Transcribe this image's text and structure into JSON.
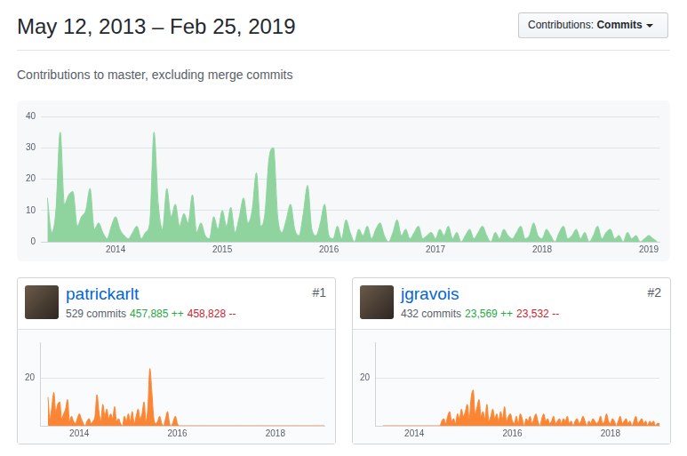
{
  "header": {
    "title": "May 12, 2013 – Feb 25, 2019",
    "button": {
      "label": "Contributions:",
      "value": "Commits"
    },
    "subtitle": "Contributions to master, excluding merge commits"
  },
  "contributors": [
    {
      "rank": "#1",
      "name": "patrickarlt",
      "commits": "529 commits",
      "additions": "457,885 ++",
      "deletions": "458,828 --"
    },
    {
      "rank": "#2",
      "name": "jgravois",
      "commits": "432 commits",
      "additions": "23,569 ++",
      "deletions": "23,532 --"
    }
  ],
  "chart_data": [
    {
      "type": "area",
      "color": "#8fd49f",
      "grid": "y",
      "xlim": [
        2013.3,
        2019.1
      ],
      "xticks": [
        2014,
        2015,
        2016,
        2017,
        2018,
        2019
      ],
      "ylim": [
        0,
        40
      ],
      "yticks": [
        0,
        10,
        20,
        30,
        40
      ],
      "x": [
        2013.36,
        2013.4,
        2013.44,
        2013.48,
        2013.52,
        2013.56,
        2013.6,
        2013.64,
        2013.68,
        2013.72,
        2013.76,
        2013.8,
        2013.84,
        2013.88,
        2013.92,
        2013.96,
        2014,
        2014.04,
        2014.08,
        2014.12,
        2014.16,
        2014.2,
        2014.24,
        2014.28,
        2014.32,
        2014.36,
        2014.4,
        2014.44,
        2014.48,
        2014.52,
        2014.56,
        2014.6,
        2014.64,
        2014.68,
        2014.72,
        2014.76,
        2014.8,
        2014.84,
        2014.88,
        2014.92,
        2014.96,
        2015,
        2015.04,
        2015.08,
        2015.12,
        2015.16,
        2015.2,
        2015.24,
        2015.28,
        2015.32,
        2015.36,
        2015.4,
        2015.44,
        2015.48,
        2015.52,
        2015.56,
        2015.6,
        2015.64,
        2015.68,
        2015.72,
        2015.76,
        2015.8,
        2015.84,
        2015.88,
        2015.92,
        2015.96,
        2016,
        2016.04,
        2016.08,
        2016.12,
        2016.16,
        2016.2,
        2016.24,
        2016.28,
        2016.32,
        2016.36,
        2016.4,
        2016.44,
        2016.48,
        2016.52,
        2016.56,
        2016.6,
        2016.64,
        2016.68,
        2016.72,
        2016.76,
        2016.8,
        2016.84,
        2016.88,
        2016.92,
        2016.96,
        2017,
        2017.04,
        2017.08,
        2017.12,
        2017.16,
        2017.2,
        2017.24,
        2017.28,
        2017.32,
        2017.36,
        2017.4,
        2017.44,
        2017.48,
        2017.52,
        2017.56,
        2017.6,
        2017.64,
        2017.68,
        2017.72,
        2017.76,
        2017.8,
        2017.84,
        2017.88,
        2017.92,
        2017.96,
        2018,
        2018.04,
        2018.08,
        2018.12,
        2018.16,
        2018.2,
        2018.24,
        2018.28,
        2018.32,
        2018.36,
        2018.4,
        2018.44,
        2018.48,
        2018.52,
        2018.56,
        2018.6,
        2018.64,
        2018.68,
        2018.72,
        2018.76,
        2018.8,
        2018.84,
        2018.88,
        2018.92,
        2018.96,
        2019,
        2019.04,
        2019.08
      ],
      "values": [
        14,
        3,
        10,
        35,
        12,
        15,
        16,
        5,
        8,
        10,
        17,
        4,
        6,
        3,
        1,
        5,
        8,
        4,
        2,
        1,
        3,
        5,
        1,
        3,
        6,
        35,
        12,
        4,
        17,
        8,
        12,
        5,
        9,
        6,
        15,
        3,
        6,
        2,
        1,
        8,
        4,
        10,
        5,
        11,
        3,
        8,
        14,
        6,
        10,
        22,
        5,
        9,
        27,
        30,
        8,
        3,
        7,
        12,
        4,
        2,
        9,
        18,
        4,
        2,
        6,
        12,
        2,
        1,
        5,
        1,
        7,
        3,
        0,
        4,
        2,
        5,
        1,
        4,
        6,
        2,
        0,
        3,
        7,
        2,
        4,
        1,
        3,
        5,
        1,
        2,
        3,
        1,
        4,
        2,
        5,
        1,
        3,
        0,
        2,
        4,
        1,
        3,
        5,
        2,
        0,
        3,
        1,
        4,
        2,
        1,
        3,
        5,
        1,
        2,
        6,
        2,
        1,
        4,
        2,
        0,
        3,
        5,
        1,
        2,
        4,
        1,
        3,
        0,
        2,
        5,
        1,
        3,
        4,
        1,
        2,
        0,
        3,
        1,
        2,
        0,
        1,
        2,
        1,
        0
      ]
    },
    {
      "type": "area",
      "color": "#fb8532",
      "grid": "y",
      "xlim": [
        2013.2,
        2019
      ],
      "xticks": [
        2014,
        2016,
        2018
      ],
      "ylim": [
        0,
        35
      ],
      "yticks": [
        20
      ],
      "x": [
        2013.36,
        2013.4,
        2013.44,
        2013.48,
        2013.52,
        2013.56,
        2013.6,
        2013.64,
        2013.68,
        2013.72,
        2013.76,
        2013.8,
        2013.84,
        2013.88,
        2013.92,
        2013.96,
        2014,
        2014.04,
        2014.08,
        2014.12,
        2014.16,
        2014.2,
        2014.24,
        2014.28,
        2014.32,
        2014.36,
        2014.4,
        2014.44,
        2014.48,
        2014.52,
        2014.56,
        2014.6,
        2014.64,
        2014.68,
        2014.72,
        2014.76,
        2014.8,
        2014.84,
        2014.88,
        2014.92,
        2014.96,
        2015,
        2015.04,
        2015.08,
        2015.12,
        2015.16,
        2015.2,
        2015.24,
        2015.28,
        2015.32,
        2015.36,
        2015.4,
        2015.44,
        2015.48,
        2015.52,
        2015.56,
        2015.6,
        2015.64,
        2015.68,
        2015.72,
        2015.76,
        2015.8,
        2015.84,
        2015.88,
        2015.92,
        2015.96,
        2016,
        2016.04,
        2016.08,
        2016.12,
        2016.16,
        2016.2,
        2016.24,
        2016.28,
        2016.32,
        2016.36,
        2016.4,
        2016.44,
        2016.48,
        2016.52,
        2016.56,
        2016.6,
        2016.64,
        2016.68,
        2016.72,
        2016.76,
        2016.8,
        2016.84,
        2016.88,
        2016.92,
        2016.96,
        2017,
        2017.04,
        2017.08,
        2017.12,
        2017.16,
        2017.2,
        2017.24,
        2017.28,
        2017.32,
        2017.36,
        2017.4,
        2017.44,
        2017.48,
        2017.52,
        2017.56,
        2017.6,
        2017.64,
        2017.68,
        2017.72,
        2017.76,
        2017.8,
        2017.84,
        2017.88,
        2017.92,
        2017.96,
        2018,
        2018.04,
        2018.08,
        2018.12,
        2018.16,
        2018.2,
        2018.24,
        2018.28,
        2018.32,
        2018.36,
        2018.4,
        2018.44,
        2018.48,
        2018.52,
        2018.56,
        2018.6,
        2018.64,
        2018.68,
        2018.72,
        2018.76,
        2018.8,
        2018.84,
        2018.88,
        2018.92,
        2018.96,
        2019,
        2019.04,
        2019.08
      ],
      "values": [
        12,
        3,
        8,
        14,
        6,
        9,
        10,
        3,
        5,
        7,
        11,
        2,
        4,
        2,
        1,
        3,
        5,
        3,
        1,
        0,
        2,
        3,
        1,
        2,
        4,
        13,
        6,
        2,
        9,
        4,
        7,
        3,
        5,
        3,
        8,
        2,
        3,
        1,
        0,
        4,
        2,
        5,
        2,
        6,
        1,
        4,
        7,
        3,
        5,
        10,
        2,
        8,
        24,
        14,
        3,
        1,
        2,
        4,
        1,
        0,
        3,
        6,
        1,
        0,
        2,
        4,
        1,
        0,
        0,
        0,
        0,
        0,
        0,
        0,
        0,
        0,
        0,
        0,
        0,
        0,
        0,
        0,
        0,
        0,
        0,
        0,
        0,
        0,
        0,
        0,
        0,
        0,
        0,
        0,
        0,
        0,
        0,
        0,
        0,
        0,
        0,
        0,
        0,
        0,
        0,
        0,
        0,
        0,
        0,
        0,
        0,
        0,
        0,
        0,
        0,
        0,
        0,
        0,
        0,
        0,
        0,
        0,
        0,
        0,
        0,
        0,
        0,
        0,
        0,
        0,
        0,
        0,
        0,
        0,
        0,
        0,
        0,
        0,
        0,
        0,
        0,
        0,
        0,
        0
      ]
    },
    {
      "type": "area",
      "color": "#fb8532",
      "grid": "y",
      "xlim": [
        2013.2,
        2019
      ],
      "xticks": [
        2014,
        2016,
        2018
      ],
      "ylim": [
        0,
        35
      ],
      "yticks": [
        20
      ],
      "x": [
        2013.36,
        2013.4,
        2013.44,
        2013.48,
        2013.52,
        2013.56,
        2013.6,
        2013.64,
        2013.68,
        2013.72,
        2013.76,
        2013.8,
        2013.84,
        2013.88,
        2013.92,
        2013.96,
        2014,
        2014.04,
        2014.08,
        2014.12,
        2014.16,
        2014.2,
        2014.24,
        2014.28,
        2014.32,
        2014.36,
        2014.4,
        2014.44,
        2014.48,
        2014.52,
        2014.56,
        2014.6,
        2014.64,
        2014.68,
        2014.72,
        2014.76,
        2014.8,
        2014.84,
        2014.88,
        2014.92,
        2014.96,
        2015,
        2015.04,
        2015.08,
        2015.12,
        2015.16,
        2015.2,
        2015.24,
        2015.28,
        2015.32,
        2015.36,
        2015.4,
        2015.44,
        2015.48,
        2015.52,
        2015.56,
        2015.6,
        2015.64,
        2015.68,
        2015.72,
        2015.76,
        2015.8,
        2015.84,
        2015.88,
        2015.92,
        2015.96,
        2016,
        2016.04,
        2016.08,
        2016.12,
        2016.16,
        2016.2,
        2016.24,
        2016.28,
        2016.32,
        2016.36,
        2016.4,
        2016.44,
        2016.48,
        2016.52,
        2016.56,
        2016.6,
        2016.64,
        2016.68,
        2016.72,
        2016.76,
        2016.8,
        2016.84,
        2016.88,
        2016.92,
        2016.96,
        2017,
        2017.04,
        2017.08,
        2017.12,
        2017.16,
        2017.2,
        2017.24,
        2017.28,
        2017.32,
        2017.36,
        2017.4,
        2017.44,
        2017.48,
        2017.52,
        2017.56,
        2017.6,
        2017.64,
        2017.68,
        2017.72,
        2017.76,
        2017.8,
        2017.84,
        2017.88,
        2017.92,
        2017.96,
        2018,
        2018.04,
        2018.08,
        2018.12,
        2018.16,
        2018.2,
        2018.24,
        2018.28,
        2018.32,
        2018.36,
        2018.4,
        2018.44,
        2018.48,
        2018.52,
        2018.56,
        2018.6,
        2018.64,
        2018.68,
        2018.72,
        2018.76,
        2018.8,
        2018.84,
        2018.88,
        2018.92,
        2018.96,
        2019,
        2019.04,
        2019.08
      ],
      "values": [
        0,
        0,
        0,
        0,
        0,
        0,
        0,
        0,
        0,
        0,
        0,
        0,
        0,
        0,
        0,
        0,
        0,
        0,
        0,
        0,
        0,
        0,
        0,
        0,
        0,
        0,
        0,
        0,
        0,
        0,
        2,
        3,
        1,
        4,
        6,
        2,
        3,
        1,
        5,
        3,
        7,
        4,
        6,
        9,
        3,
        12,
        15,
        5,
        8,
        11,
        4,
        6,
        3,
        9,
        2,
        4,
        7,
        3,
        5,
        2,
        6,
        3,
        8,
        2,
        4,
        5,
        2,
        1,
        4,
        1,
        5,
        3,
        0,
        3,
        2,
        4,
        1,
        3,
        5,
        2,
        0,
        3,
        5,
        2,
        3,
        1,
        2,
        4,
        1,
        2,
        3,
        1,
        3,
        2,
        4,
        1,
        2,
        0,
        2,
        3,
        1,
        2,
        4,
        2,
        0,
        2,
        1,
        3,
        2,
        1,
        2,
        4,
        1,
        2,
        5,
        2,
        1,
        3,
        2,
        0,
        2,
        4,
        1,
        2,
        3,
        1,
        2,
        0,
        2,
        4,
        1,
        2,
        3,
        1,
        2,
        0,
        2,
        1,
        2,
        0,
        1,
        1,
        1,
        0
      ]
    }
  ]
}
